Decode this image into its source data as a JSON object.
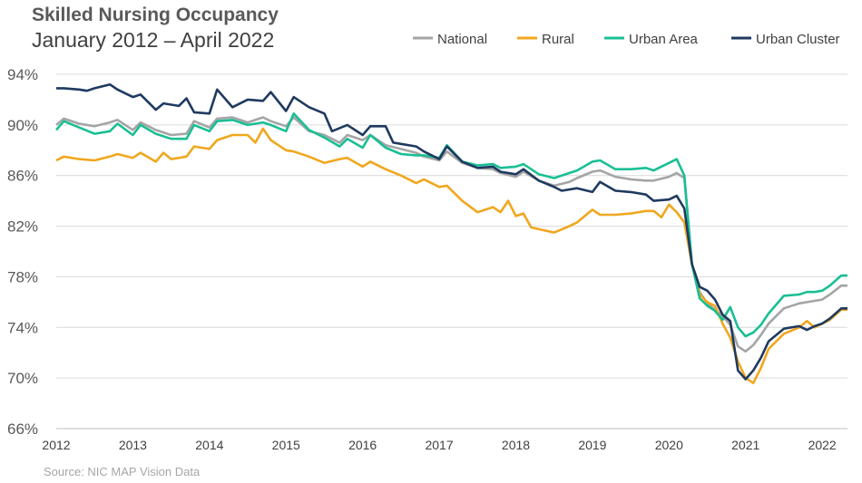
{
  "title": "Skilled Nursing Occupancy",
  "subtitle": "January 2012 – April 2022",
  "source": "Source: NIC MAP Vision Data",
  "chart_data": {
    "type": "line",
    "title": "Skilled Nursing Occupancy",
    "subtitle": "January 2012 – April 2022",
    "ylim": [
      66,
      94
    ],
    "yticks": [
      66,
      70,
      74,
      78,
      82,
      86,
      90,
      94
    ],
    "ytick_labels": [
      "66%",
      "70%",
      "74%",
      "78%",
      "82%",
      "86%",
      "90%",
      "94%"
    ],
    "xlim": [
      2012.0,
      2022.33
    ],
    "xticks": [
      2012,
      2013,
      2014,
      2015,
      2016,
      2017,
      2018,
      2019,
      2020,
      2021,
      2022
    ],
    "xtick_labels": [
      "2012",
      "2013",
      "2014",
      "2015",
      "2016",
      "2017",
      "2018",
      "2019",
      "2020",
      "2021",
      "2022"
    ],
    "grid": "horizontal",
    "legend_position": "top-right",
    "series": [
      {
        "name": "National",
        "color": "#a5a5a5",
        "points": [
          [
            2012.0,
            90.0
          ],
          [
            2012.1,
            90.5
          ],
          [
            2012.3,
            90.1
          ],
          [
            2012.5,
            89.9
          ],
          [
            2012.7,
            90.2
          ],
          [
            2012.8,
            90.4
          ],
          [
            2013.0,
            89.6
          ],
          [
            2013.1,
            90.2
          ],
          [
            2013.3,
            89.6
          ],
          [
            2013.5,
            89.2
          ],
          [
            2013.7,
            89.3
          ],
          [
            2013.8,
            90.3
          ],
          [
            2014.0,
            89.8
          ],
          [
            2014.1,
            90.5
          ],
          [
            2014.3,
            90.6
          ],
          [
            2014.5,
            90.2
          ],
          [
            2014.7,
            90.6
          ],
          [
            2014.8,
            90.3
          ],
          [
            2015.0,
            89.9
          ],
          [
            2015.1,
            90.6
          ],
          [
            2015.3,
            89.5
          ],
          [
            2015.5,
            89.2
          ],
          [
            2015.7,
            88.6
          ],
          [
            2015.8,
            89.2
          ],
          [
            2016.0,
            88.8
          ],
          [
            2016.1,
            89.2
          ],
          [
            2016.3,
            88.4
          ],
          [
            2016.5,
            88.1
          ],
          [
            2016.7,
            87.8
          ],
          [
            2016.8,
            87.5
          ],
          [
            2017.0,
            87.2
          ],
          [
            2017.1,
            87.9
          ],
          [
            2017.3,
            87.0
          ],
          [
            2017.5,
            86.6
          ],
          [
            2017.7,
            86.5
          ],
          [
            2017.8,
            86.2
          ],
          [
            2018.0,
            85.9
          ],
          [
            2018.1,
            86.3
          ],
          [
            2018.3,
            85.6
          ],
          [
            2018.5,
            85.2
          ],
          [
            2018.7,
            85.5
          ],
          [
            2018.8,
            85.8
          ],
          [
            2019.0,
            86.3
          ],
          [
            2019.1,
            86.4
          ],
          [
            2019.3,
            85.9
          ],
          [
            2019.5,
            85.7
          ],
          [
            2019.7,
            85.6
          ],
          [
            2019.8,
            85.6
          ],
          [
            2020.0,
            85.9
          ],
          [
            2020.1,
            86.2
          ],
          [
            2020.2,
            85.8
          ],
          [
            2020.3,
            79.0
          ],
          [
            2020.4,
            76.8
          ],
          [
            2020.5,
            75.9
          ],
          [
            2020.6,
            75.4
          ],
          [
            2020.7,
            74.9
          ],
          [
            2020.8,
            74.2
          ],
          [
            2020.9,
            72.5
          ],
          [
            2021.0,
            72.1
          ],
          [
            2021.1,
            72.6
          ],
          [
            2021.2,
            73.4
          ],
          [
            2021.3,
            74.3
          ],
          [
            2021.5,
            75.5
          ],
          [
            2021.7,
            75.9
          ],
          [
            2021.8,
            76.0
          ],
          [
            2021.9,
            76.1
          ],
          [
            2022.0,
            76.2
          ],
          [
            2022.1,
            76.6
          ],
          [
            2022.25,
            77.3
          ],
          [
            2022.33,
            77.3
          ]
        ]
      },
      {
        "name": "Rural",
        "color": "#f0a71e",
        "points": [
          [
            2012.0,
            87.2
          ],
          [
            2012.1,
            87.5
          ],
          [
            2012.3,
            87.3
          ],
          [
            2012.5,
            87.2
          ],
          [
            2012.7,
            87.5
          ],
          [
            2012.8,
            87.7
          ],
          [
            2013.0,
            87.4
          ],
          [
            2013.1,
            87.8
          ],
          [
            2013.3,
            87.1
          ],
          [
            2013.4,
            87.8
          ],
          [
            2013.5,
            87.3
          ],
          [
            2013.7,
            87.5
          ],
          [
            2013.8,
            88.3
          ],
          [
            2014.0,
            88.1
          ],
          [
            2014.1,
            88.8
          ],
          [
            2014.3,
            89.2
          ],
          [
            2014.5,
            89.2
          ],
          [
            2014.6,
            88.6
          ],
          [
            2014.7,
            89.7
          ],
          [
            2014.8,
            88.8
          ],
          [
            2015.0,
            88.0
          ],
          [
            2015.1,
            87.9
          ],
          [
            2015.3,
            87.5
          ],
          [
            2015.5,
            87.0
          ],
          [
            2015.7,
            87.3
          ],
          [
            2015.8,
            87.4
          ],
          [
            2016.0,
            86.7
          ],
          [
            2016.1,
            87.1
          ],
          [
            2016.3,
            86.5
          ],
          [
            2016.5,
            86.0
          ],
          [
            2016.7,
            85.4
          ],
          [
            2016.8,
            85.7
          ],
          [
            2017.0,
            85.1
          ],
          [
            2017.1,
            85.2
          ],
          [
            2017.3,
            84.0
          ],
          [
            2017.5,
            83.1
          ],
          [
            2017.7,
            83.5
          ],
          [
            2017.8,
            83.1
          ],
          [
            2017.9,
            84.0
          ],
          [
            2018.0,
            82.8
          ],
          [
            2018.1,
            83.0
          ],
          [
            2018.2,
            81.9
          ],
          [
            2018.5,
            81.5
          ],
          [
            2018.7,
            82.0
          ],
          [
            2018.8,
            82.3
          ],
          [
            2019.0,
            83.3
          ],
          [
            2019.1,
            82.9
          ],
          [
            2019.3,
            82.9
          ],
          [
            2019.5,
            83.0
          ],
          [
            2019.7,
            83.2
          ],
          [
            2019.8,
            83.2
          ],
          [
            2019.9,
            82.7
          ],
          [
            2020.0,
            83.7
          ],
          [
            2020.1,
            83.1
          ],
          [
            2020.2,
            82.3
          ],
          [
            2020.3,
            79.0
          ],
          [
            2020.4,
            76.6
          ],
          [
            2020.5,
            76.0
          ],
          [
            2020.6,
            75.7
          ],
          [
            2020.7,
            74.3
          ],
          [
            2020.8,
            73.2
          ],
          [
            2020.9,
            71.3
          ],
          [
            2021.0,
            70.0
          ],
          [
            2021.1,
            69.6
          ],
          [
            2021.2,
            70.8
          ],
          [
            2021.3,
            72.3
          ],
          [
            2021.5,
            73.5
          ],
          [
            2021.7,
            74.0
          ],
          [
            2021.8,
            74.5
          ],
          [
            2021.9,
            74.0
          ],
          [
            2022.0,
            74.3
          ],
          [
            2022.1,
            74.6
          ],
          [
            2022.25,
            75.4
          ],
          [
            2022.33,
            75.4
          ]
        ]
      },
      {
        "name": "Urban Area",
        "color": "#19bf94",
        "points": [
          [
            2012.0,
            89.6
          ],
          [
            2012.1,
            90.3
          ],
          [
            2012.3,
            89.8
          ],
          [
            2012.5,
            89.3
          ],
          [
            2012.7,
            89.5
          ],
          [
            2012.8,
            90.1
          ],
          [
            2013.0,
            89.2
          ],
          [
            2013.1,
            90.0
          ],
          [
            2013.3,
            89.3
          ],
          [
            2013.5,
            88.9
          ],
          [
            2013.7,
            88.9
          ],
          [
            2013.8,
            90.0
          ],
          [
            2014.0,
            89.5
          ],
          [
            2014.1,
            90.3
          ],
          [
            2014.3,
            90.4
          ],
          [
            2014.5,
            90.0
          ],
          [
            2014.7,
            90.2
          ],
          [
            2014.8,
            90.0
          ],
          [
            2015.0,
            89.5
          ],
          [
            2015.1,
            90.9
          ],
          [
            2015.3,
            89.6
          ],
          [
            2015.5,
            89.0
          ],
          [
            2015.7,
            88.3
          ],
          [
            2015.8,
            88.9
          ],
          [
            2016.0,
            88.2
          ],
          [
            2016.1,
            89.2
          ],
          [
            2016.3,
            88.2
          ],
          [
            2016.5,
            87.7
          ],
          [
            2016.7,
            87.6
          ],
          [
            2016.8,
            87.6
          ],
          [
            2017.0,
            87.4
          ],
          [
            2017.1,
            88.4
          ],
          [
            2017.3,
            87.1
          ],
          [
            2017.5,
            86.8
          ],
          [
            2017.7,
            86.9
          ],
          [
            2017.8,
            86.6
          ],
          [
            2018.0,
            86.7
          ],
          [
            2018.1,
            86.9
          ],
          [
            2018.3,
            86.1
          ],
          [
            2018.5,
            85.8
          ],
          [
            2018.7,
            86.2
          ],
          [
            2018.8,
            86.4
          ],
          [
            2019.0,
            87.1
          ],
          [
            2019.1,
            87.2
          ],
          [
            2019.3,
            86.5
          ],
          [
            2019.5,
            86.5
          ],
          [
            2019.7,
            86.6
          ],
          [
            2019.8,
            86.4
          ],
          [
            2020.0,
            87.0
          ],
          [
            2020.1,
            87.3
          ],
          [
            2020.2,
            86.0
          ],
          [
            2020.3,
            79.0
          ],
          [
            2020.4,
            76.3
          ],
          [
            2020.5,
            75.7
          ],
          [
            2020.6,
            75.3
          ],
          [
            2020.7,
            74.6
          ],
          [
            2020.8,
            75.6
          ],
          [
            2020.9,
            74.0
          ],
          [
            2021.0,
            73.3
          ],
          [
            2021.1,
            73.6
          ],
          [
            2021.2,
            74.2
          ],
          [
            2021.3,
            75.1
          ],
          [
            2021.5,
            76.5
          ],
          [
            2021.7,
            76.6
          ],
          [
            2021.8,
            76.8
          ],
          [
            2021.9,
            76.8
          ],
          [
            2022.0,
            76.9
          ],
          [
            2022.1,
            77.3
          ],
          [
            2022.25,
            78.1
          ],
          [
            2022.33,
            78.1
          ]
        ]
      },
      {
        "name": "Urban Cluster",
        "color": "#1f3a5f",
        "points": [
          [
            2012.0,
            92.9
          ],
          [
            2012.1,
            92.9
          ],
          [
            2012.3,
            92.8
          ],
          [
            2012.4,
            92.7
          ],
          [
            2012.5,
            92.9
          ],
          [
            2012.7,
            93.2
          ],
          [
            2012.8,
            92.8
          ],
          [
            2013.0,
            92.2
          ],
          [
            2013.1,
            92.4
          ],
          [
            2013.3,
            91.2
          ],
          [
            2013.4,
            91.7
          ],
          [
            2013.6,
            91.5
          ],
          [
            2013.7,
            92.1
          ],
          [
            2013.8,
            91.0
          ],
          [
            2014.0,
            90.9
          ],
          [
            2014.1,
            92.8
          ],
          [
            2014.3,
            91.4
          ],
          [
            2014.5,
            92.0
          ],
          [
            2014.7,
            91.9
          ],
          [
            2014.8,
            92.6
          ],
          [
            2015.0,
            91.1
          ],
          [
            2015.1,
            92.2
          ],
          [
            2015.3,
            91.4
          ],
          [
            2015.5,
            90.9
          ],
          [
            2015.6,
            89.5
          ],
          [
            2015.8,
            90.0
          ],
          [
            2016.0,
            89.2
          ],
          [
            2016.1,
            89.9
          ],
          [
            2016.3,
            89.9
          ],
          [
            2016.4,
            88.6
          ],
          [
            2016.5,
            88.5
          ],
          [
            2016.7,
            88.3
          ],
          [
            2016.8,
            87.9
          ],
          [
            2017.0,
            87.3
          ],
          [
            2017.1,
            88.3
          ],
          [
            2017.3,
            87.1
          ],
          [
            2017.5,
            86.6
          ],
          [
            2017.7,
            86.7
          ],
          [
            2017.8,
            86.3
          ],
          [
            2018.0,
            86.1
          ],
          [
            2018.1,
            86.5
          ],
          [
            2018.3,
            85.6
          ],
          [
            2018.5,
            85.1
          ],
          [
            2018.6,
            84.8
          ],
          [
            2018.8,
            85.0
          ],
          [
            2019.0,
            84.7
          ],
          [
            2019.1,
            85.5
          ],
          [
            2019.3,
            84.8
          ],
          [
            2019.5,
            84.7
          ],
          [
            2019.7,
            84.5
          ],
          [
            2019.8,
            84.0
          ],
          [
            2020.0,
            84.1
          ],
          [
            2020.1,
            84.4
          ],
          [
            2020.2,
            83.4
          ],
          [
            2020.3,
            79.0
          ],
          [
            2020.4,
            77.2
          ],
          [
            2020.5,
            76.9
          ],
          [
            2020.6,
            76.2
          ],
          [
            2020.7,
            75.0
          ],
          [
            2020.8,
            74.5
          ],
          [
            2020.9,
            70.6
          ],
          [
            2021.0,
            69.9
          ],
          [
            2021.1,
            70.6
          ],
          [
            2021.2,
            71.6
          ],
          [
            2021.3,
            72.9
          ],
          [
            2021.5,
            73.9
          ],
          [
            2021.7,
            74.1
          ],
          [
            2021.8,
            73.8
          ],
          [
            2021.9,
            74.1
          ],
          [
            2022.0,
            74.3
          ],
          [
            2022.1,
            74.7
          ],
          [
            2022.25,
            75.5
          ],
          [
            2022.33,
            75.5
          ]
        ]
      }
    ]
  }
}
